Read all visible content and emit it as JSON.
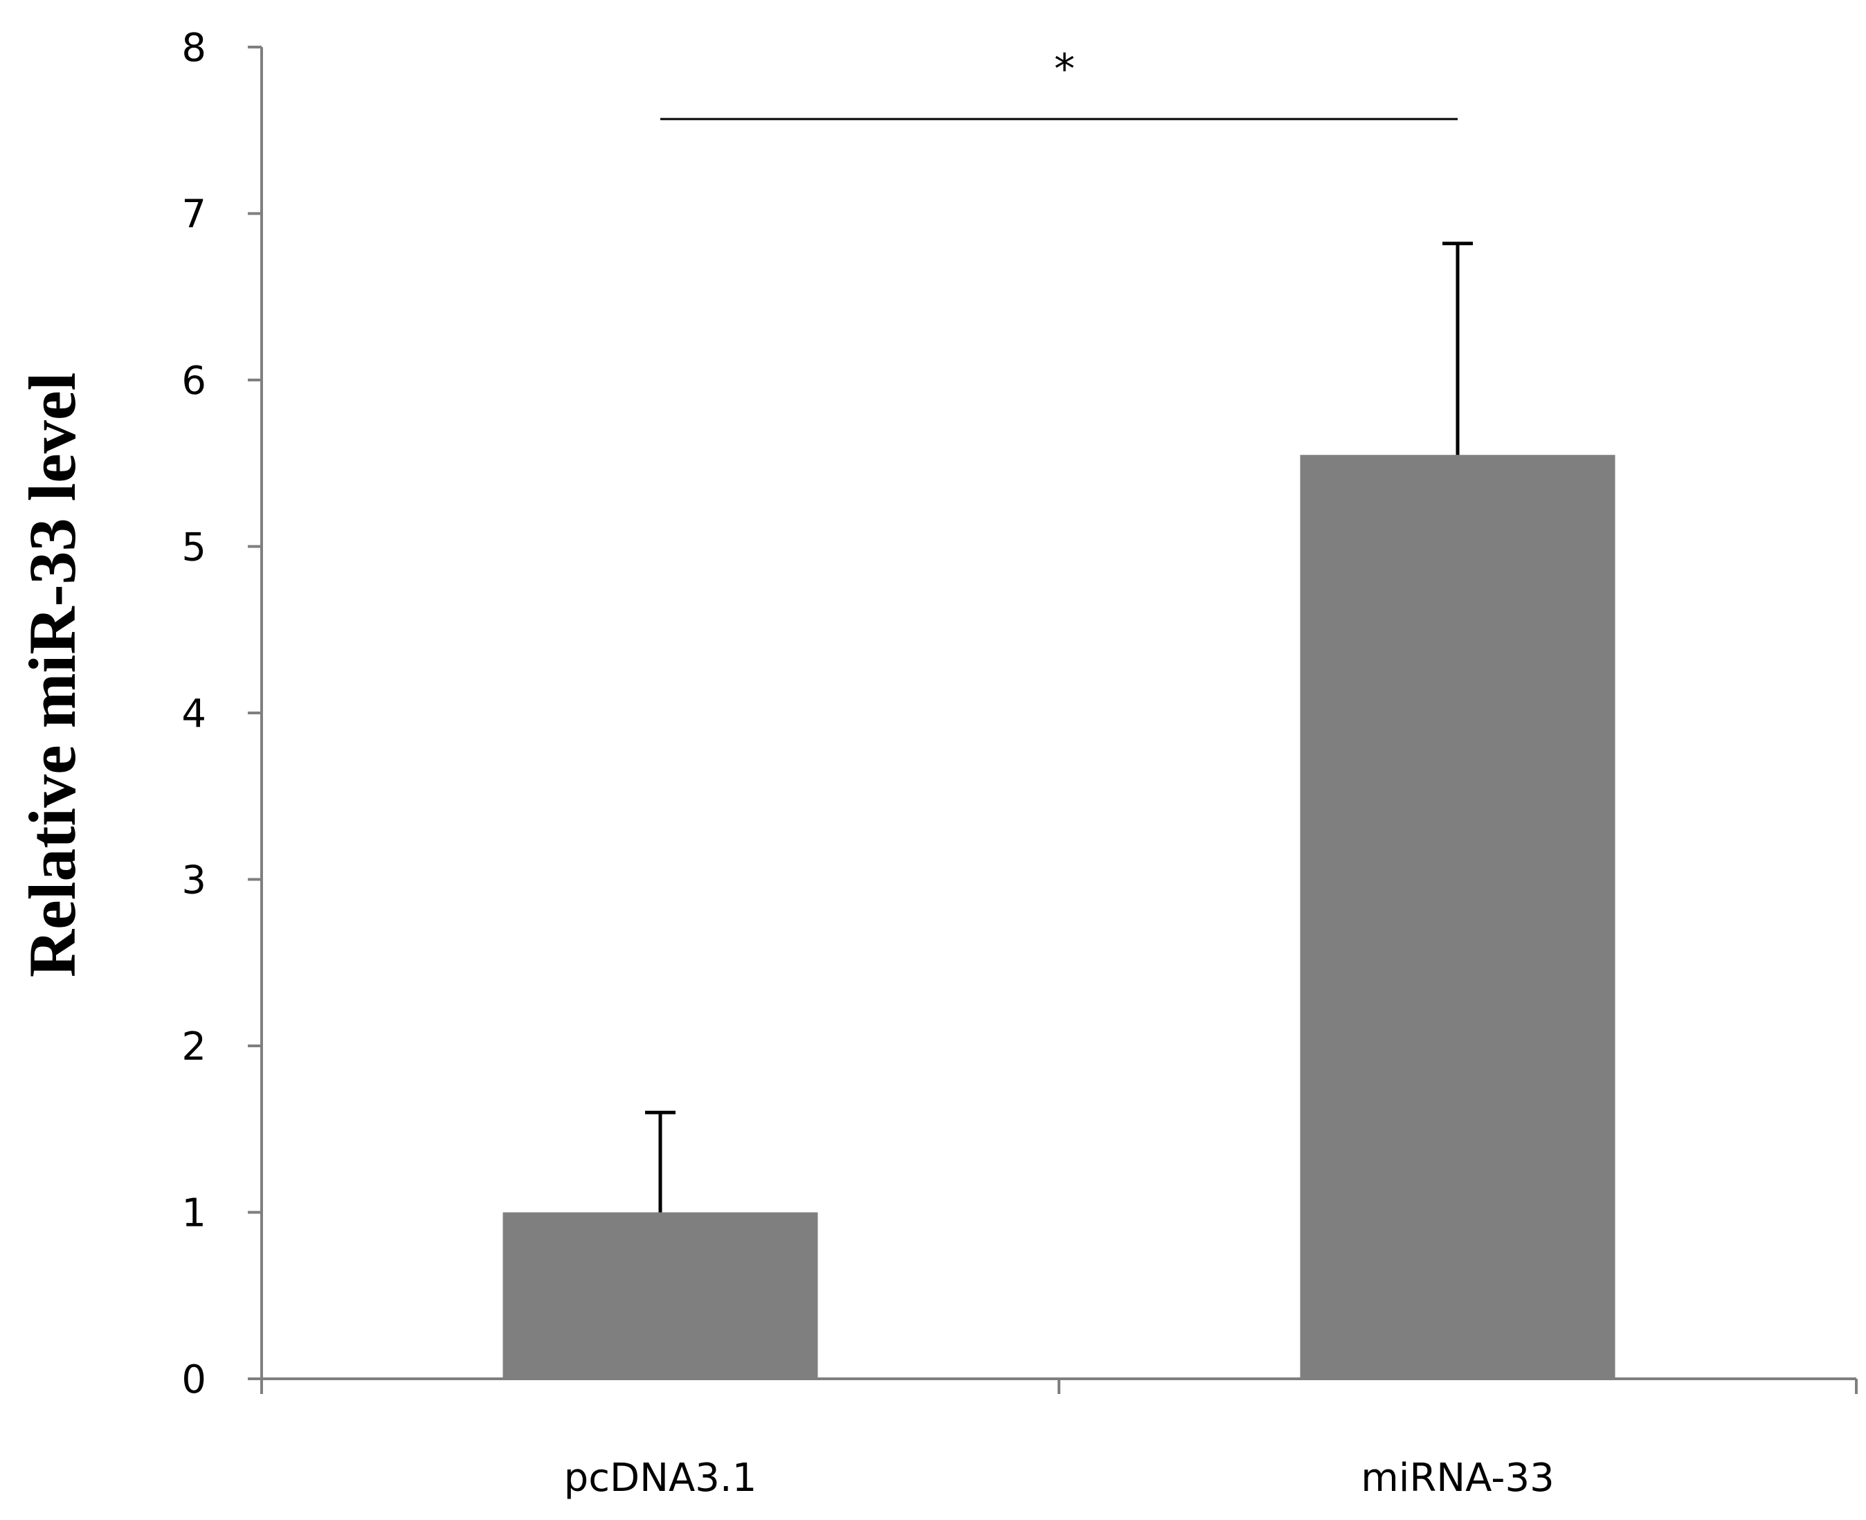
{
  "chart_data": {
    "type": "bar",
    "categories": [
      "pcDNA3.1",
      "miRNA-33"
    ],
    "values": [
      1.0,
      5.55
    ],
    "error_upper": [
      1.6,
      6.82
    ],
    "ylabel": "Relative miR-33  level",
    "xlabel": "",
    "ylim": [
      0,
      8
    ],
    "yticks": [
      "0",
      "1",
      "2",
      "3",
      "4",
      "5",
      "6",
      "7",
      "8"
    ],
    "grid": false,
    "bar_color": "#7f7f7f",
    "significance": {
      "between": [
        "pcDNA3.1",
        "miRNA-33"
      ],
      "label": "*"
    }
  }
}
